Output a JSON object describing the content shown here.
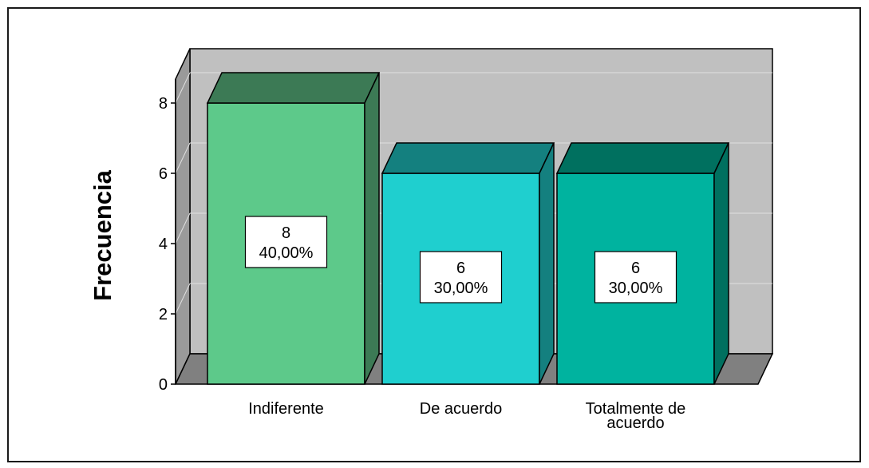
{
  "chart_data": {
    "type": "bar",
    "style": "3d",
    "categories": [
      "Indiferente",
      "De acuerdo",
      "Totalmente de acuerdo"
    ],
    "category_label_lines": [
      [
        "Indiferente"
      ],
      [
        "De acuerdo"
      ],
      [
        "Totalmente de",
        "acuerdo"
      ]
    ],
    "values": [
      8,
      6,
      6
    ],
    "percentages": [
      "40,00%",
      "30,00%",
      "30,00%"
    ],
    "ylabel": "Frecuencia",
    "xlabel": "",
    "title": "",
    "ylim": [
      0,
      8
    ],
    "yticks": [
      0,
      2,
      4,
      6,
      8
    ],
    "grid": true,
    "legend": "none",
    "colors": {
      "bar_front": [
        "#5dc98a",
        "#1fcfcf",
        "#00b39f"
      ],
      "bar_top": [
        "#3c7a55",
        "#14807f",
        "#00705f"
      ],
      "bar_side": [
        "#3c7a55",
        "#14807f",
        "#00705f"
      ],
      "wall": "#c0c0c0",
      "floor": "#808080",
      "gridline": "#e0e0e0"
    }
  }
}
